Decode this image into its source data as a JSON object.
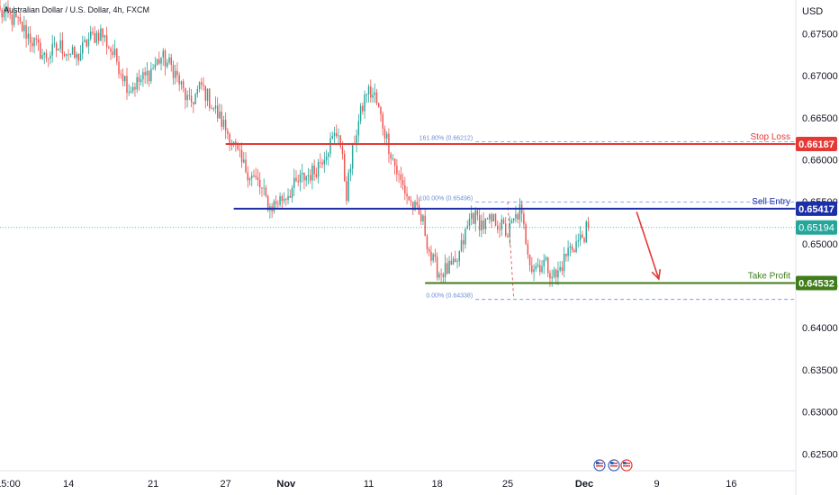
{
  "header": {
    "symbol_title": "Australian Dollar / U.S. Dollar, 4h, FXCM",
    "currency": "USD"
  },
  "colors": {
    "bull": "#26a69a",
    "bear": "#ef5350",
    "stop_loss": "#e53935",
    "sell_entry": "#1d2fa8",
    "take_profit": "#3f7d1a",
    "last_price": "#26a69a",
    "fib": "#6e8fd6",
    "arrow": "#e53935"
  },
  "chart_data": {
    "type": "candlestick",
    "title": "Australian Dollar / U.S. Dollar, 4h, FXCM",
    "ylim": [
      0.623,
      0.679
    ],
    "y_ticks": [
      0.675,
      0.67,
      0.665,
      0.66,
      0.655,
      0.65,
      0.645,
      0.64,
      0.635,
      0.63,
      0.625
    ],
    "y_tick_labels": [
      "0.67500",
      "0.67000",
      "0.66500",
      "0.66000",
      "0.65500",
      "0.65000",
      "0.64500",
      "0.64000",
      "0.63500",
      "0.63000",
      "0.62500"
    ],
    "x_ticks": [
      {
        "label": "15:00",
        "bar": 4
      },
      {
        "label": "14",
        "bar": 34
      },
      {
        "label": "21",
        "bar": 76
      },
      {
        "label": "27",
        "bar": 112
      },
      {
        "label": "Nov",
        "bar": 142
      },
      {
        "label": "11",
        "bar": 183
      },
      {
        "label": "18",
        "bar": 217
      },
      {
        "label": "25",
        "bar": 252
      },
      {
        "label": "Dec",
        "bar": 290
      },
      {
        "label": "9",
        "bar": 326
      },
      {
        "label": "16",
        "bar": 363
      }
    ],
    "x_range": [
      0,
      395
    ],
    "candles_path": [
      [
        0,
        0.6775
      ],
      [
        8,
        0.6765
      ],
      [
        14,
        0.6748
      ],
      [
        22,
        0.6722
      ],
      [
        30,
        0.6735
      ],
      [
        38,
        0.672
      ],
      [
        44,
        0.6743
      ],
      [
        50,
        0.6752
      ],
      [
        58,
        0.6718
      ],
      [
        64,
        0.6685
      ],
      [
        72,
        0.6698
      ],
      [
        80,
        0.6722
      ],
      [
        86,
        0.6708
      ],
      [
        94,
        0.6665
      ],
      [
        100,
        0.6688
      ],
      [
        106,
        0.6662
      ],
      [
        114,
        0.6628
      ],
      [
        120,
        0.6595
      ],
      [
        128,
        0.6572
      ],
      [
        134,
        0.6543
      ],
      [
        142,
        0.6558
      ],
      [
        150,
        0.6578
      ],
      [
        156,
        0.6586
      ],
      [
        162,
        0.6612
      ],
      [
        168,
        0.6635
      ],
      [
        172,
        0.656
      ],
      [
        176,
        0.6625
      ],
      [
        182,
        0.6682
      ],
      [
        186,
        0.6675
      ],
      [
        192,
        0.6625
      ],
      [
        198,
        0.6578
      ],
      [
        204,
        0.6548
      ],
      [
        210,
        0.6525
      ],
      [
        214,
        0.6482
      ],
      [
        218,
        0.6466
      ],
      [
        226,
        0.6472
      ],
      [
        234,
        0.6535
      ],
      [
        240,
        0.6522
      ],
      [
        246,
        0.6528
      ],
      [
        252,
        0.6512
      ],
      [
        258,
        0.654
      ],
      [
        264,
        0.6472
      ],
      [
        270,
        0.6478
      ],
      [
        276,
        0.646
      ],
      [
        282,
        0.6492
      ],
      [
        288,
        0.6505
      ],
      [
        292,
        0.6519
      ]
    ],
    "levels": [
      {
        "label": "Stop Loss",
        "value": 0.66187,
        "price_label": "0.66187",
        "color_key": "stop_loss",
        "from_bar": 112
      },
      {
        "label": "Sell Entry",
        "value": 0.65417,
        "price_label": "0.65417",
        "color_key": "sell_entry",
        "from_bar": 116
      },
      {
        "label": "Take Profit",
        "value": 0.64532,
        "price_label": "0.64532",
        "color_key": "take_profit",
        "from_bar": 211
      }
    ],
    "last_price": {
      "value": 0.65194,
      "price_label": "0.65194"
    },
    "fibonacci": [
      {
        "label": "161.80% (0.66212)",
        "value": 0.66212
      },
      {
        "label": "100.00% (0.65496)",
        "value": 0.65496
      },
      {
        "label": "0.00% (0.64338)",
        "value": 0.64338
      }
    ],
    "fib_range_bars": [
      236,
      395
    ],
    "arrow": {
      "from_bar": 316,
      "from_value": 0.6538,
      "to_bar": 327,
      "to_value": 0.6458
    }
  }
}
